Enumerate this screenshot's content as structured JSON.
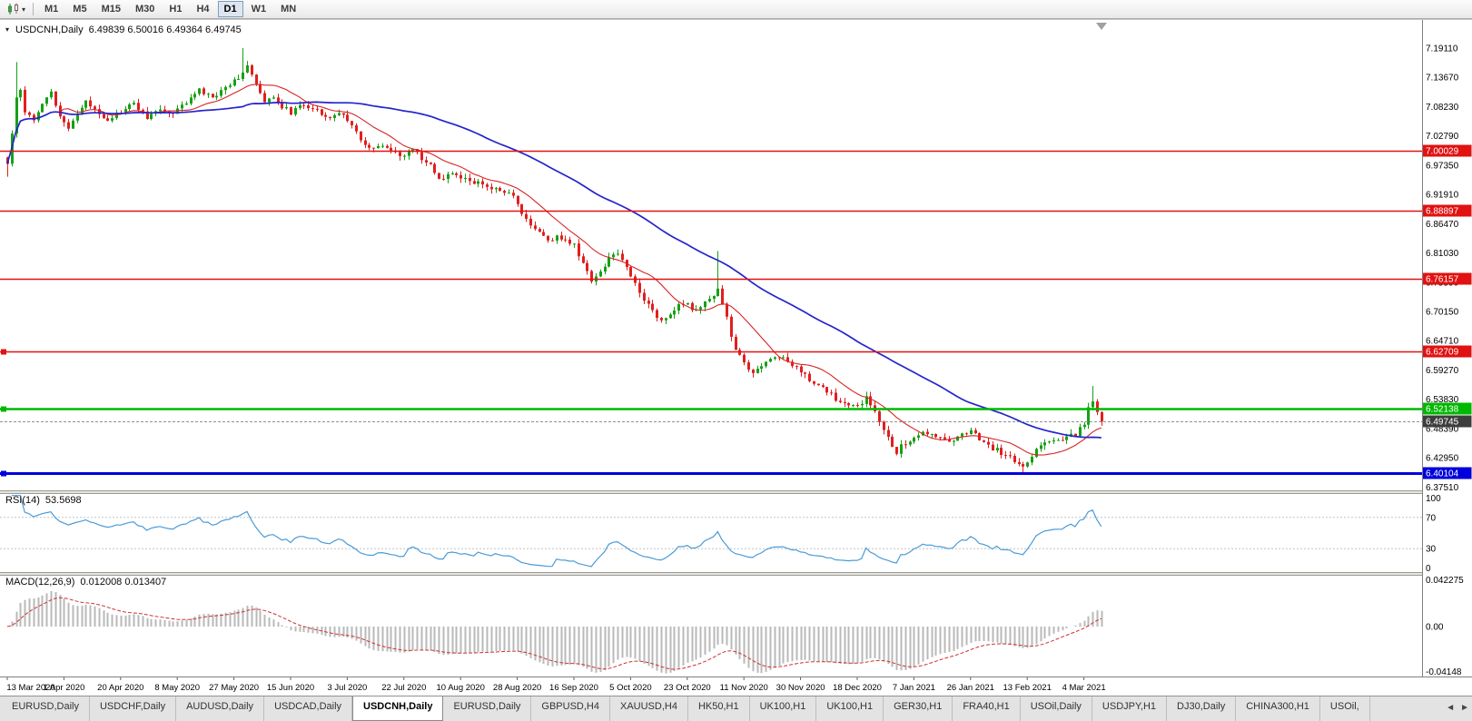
{
  "toolbar": {
    "timeframes": [
      "M1",
      "M5",
      "M15",
      "M30",
      "H1",
      "H4",
      "D1",
      "W1",
      "MN"
    ],
    "active_timeframe": "D1",
    "dropdown_caret": "▾"
  },
  "main_chart": {
    "collapse_arrow": "▾",
    "title": "USDCNH,Daily",
    "ohlc_text": "6.49839 6.50016 6.49364 6.49745"
  },
  "rsi_panel": {
    "label": "RSI(14)",
    "value": "53.5698",
    "axis_labels": [
      "100",
      "70",
      "30",
      "0"
    ]
  },
  "macd_panel": {
    "label": "MACD(12,26,9)",
    "values": "0.012008 0.013407",
    "axis_labels": [
      "0.042275",
      "0.00",
      "-0.04148"
    ]
  },
  "price_axis": {
    "labels": [
      "7.19110",
      "7.13670",
      "7.08230",
      "7.02790",
      "6.97350",
      "6.91910",
      "6.86470",
      "6.81030",
      "6.75590",
      "6.70150",
      "6.64710",
      "6.59270",
      "6.53830",
      "6.48390",
      "6.42950",
      "6.37510"
    ]
  },
  "time_axis": {
    "labels": [
      "13 Mar 2020",
      "1 Apr 2020",
      "20 Apr 2020",
      "8 May 2020",
      "27 May 2020",
      "15 Jun 2020",
      "3 Jul 2020",
      "22 Jul 2020",
      "10 Aug 2020",
      "28 Aug 2020",
      "16 Sep 2020",
      "5 Oct 2020",
      "23 Oct 2020",
      "11 Nov 2020",
      "30 Nov 2020",
      "18 Dec 2020",
      "7 Jan 2021",
      "26 Jan 2021",
      "13 Feb 2021",
      "4 Mar 2021"
    ],
    "days_per_label": 13
  },
  "tabs": {
    "items": [
      "EURUSD,Daily",
      "USDCHF,Daily",
      "AUDUSD,Daily",
      "USDCAD,Daily",
      "USDCNH,Daily",
      "EURUSD,Daily",
      "GBPUSD,H4",
      "XAUUSD,H4",
      "HK50,H1",
      "UK100,H1",
      "UK100,H1",
      "GER30,H1",
      "FRA40,H1",
      "USOil,Daily",
      "USDJPY,H1",
      "DJ30,Daily",
      "CHINA300,H1",
      "USOil,"
    ],
    "active": "USDCNH,Daily",
    "scroll_left_icon": "◄",
    "scroll_right_icon": "►"
  },
  "colors": {
    "up": "#16a016",
    "down": "#e01f1f",
    "ma_fast": "#d82424",
    "ma_slow": "#2424cc",
    "rsi_line": "#4b9bd7",
    "macd_hist": "#b9b9b9",
    "macd_signal": "#cc3333",
    "level_red": "#e01212",
    "level_green": "#00b800",
    "level_blue": "#0000dc",
    "current_badge_bg": "#3d3d3d",
    "badge_text": "#ffffff",
    "axis_text": "#000000"
  },
  "chart_data": {
    "type": "candlestick",
    "symbol": "USDCNH",
    "timeframe": "Daily",
    "ohlc_display": {
      "open": 6.49839,
      "high": 6.50016,
      "low": 6.49364,
      "close": 6.49745
    },
    "current_price": 6.49745,
    "num_candles": 252,
    "y_range_hint": [
      6.369,
      7.243
    ],
    "grid": "off",
    "legend": "none",
    "horizontal_lines": [
      {
        "price": 7.00029,
        "label": "7.00029",
        "color": "#e01212",
        "width": 1.4,
        "handle": false
      },
      {
        "price": 6.88897,
        "label": "6.88897",
        "color": "#e01212",
        "width": 1.4,
        "handle": false
      },
      {
        "price": 6.76157,
        "label": "6.76157",
        "color": "#e01212",
        "width": 1.4,
        "handle": false
      },
      {
        "price": 6.62709,
        "label": "6.62709",
        "color": "#e01212",
        "width": 1.6,
        "handle": true
      },
      {
        "price": 6.52138,
        "label": "6.52138",
        "color": "#00b800",
        "width": 2.6,
        "handle": true
      },
      {
        "price": 6.40104,
        "label": "6.40104",
        "color": "#0000dc",
        "width": 3.0,
        "handle": true
      }
    ],
    "moving_averages": [
      {
        "name": "fast",
        "period": 13,
        "color": "#d82424"
      },
      {
        "name": "slow",
        "period": 55,
        "color": "#2424cc"
      }
    ],
    "price_trend_anchors": [
      [
        0,
        6.975
      ],
      [
        1,
        7.035
      ],
      [
        2,
        7.1
      ],
      [
        3,
        7.115
      ],
      [
        4,
        7.075
      ],
      [
        6,
        7.06
      ],
      [
        8,
        7.09
      ],
      [
        10,
        7.11
      ],
      [
        12,
        7.06
      ],
      [
        14,
        7.045
      ],
      [
        16,
        7.07
      ],
      [
        18,
        7.09
      ],
      [
        20,
        7.078
      ],
      [
        23,
        7.058
      ],
      [
        26,
        7.072
      ],
      [
        29,
        7.088
      ],
      [
        32,
        7.062
      ],
      [
        35,
        7.078
      ],
      [
        38,
        7.068
      ],
      [
        41,
        7.092
      ],
      [
        44,
        7.112
      ],
      [
        47,
        7.098
      ],
      [
        50,
        7.118
      ],
      [
        53,
        7.138
      ],
      [
        55,
        7.158
      ],
      [
        57,
        7.122
      ],
      [
        59,
        7.088
      ],
      [
        61,
        7.102
      ],
      [
        63,
        7.082
      ],
      [
        65,
        7.072
      ],
      [
        68,
        7.086
      ],
      [
        71,
        7.076
      ],
      [
        74,
        7.062
      ],
      [
        77,
        7.07
      ],
      [
        79,
        7.048
      ],
      [
        81,
        7.018
      ],
      [
        83,
        7.002
      ],
      [
        86,
        7.012
      ],
      [
        88,
        6.998
      ],
      [
        91,
        6.99
      ],
      [
        93,
        7.004
      ],
      [
        95,
        6.986
      ],
      [
        97,
        6.972
      ],
      [
        99,
        6.948
      ],
      [
        102,
        6.956
      ],
      [
        104,
        6.95
      ],
      [
        107,
        6.942
      ],
      [
        110,
        6.934
      ],
      [
        113,
        6.926
      ],
      [
        116,
        6.916
      ],
      [
        118,
        6.882
      ],
      [
        120,
        6.862
      ],
      [
        122,
        6.85
      ],
      [
        124,
        6.83
      ],
      [
        126,
        6.842
      ],
      [
        128,
        6.834
      ],
      [
        130,
        6.824
      ],
      [
        132,
        6.79
      ],
      [
        134,
        6.758
      ],
      [
        136,
        6.776
      ],
      [
        138,
        6.8
      ],
      [
        140,
        6.812
      ],
      [
        142,
        6.782
      ],
      [
        144,
        6.754
      ],
      [
        146,
        6.726
      ],
      [
        148,
        6.702
      ],
      [
        150,
        6.684
      ],
      [
        152,
        6.698
      ],
      [
        154,
        6.712
      ],
      [
        156,
        6.714
      ],
      [
        158,
        6.702
      ],
      [
        160,
        6.716
      ],
      [
        162,
        6.732
      ],
      [
        163,
        6.746
      ],
      [
        164,
        6.712
      ],
      [
        165,
        6.69
      ],
      [
        166,
        6.658
      ],
      [
        167,
        6.628
      ],
      [
        169,
        6.606
      ],
      [
        171,
        6.586
      ],
      [
        173,
        6.602
      ],
      [
        175,
        6.614
      ],
      [
        177,
        6.62
      ],
      [
        179,
        6.606
      ],
      [
        182,
        6.592
      ],
      [
        184,
        6.574
      ],
      [
        186,
        6.56
      ],
      [
        188,
        6.554
      ],
      [
        190,
        6.538
      ],
      [
        192,
        6.53
      ],
      [
        195,
        6.524
      ],
      [
        197,
        6.54
      ],
      [
        199,
        6.52
      ],
      [
        201,
        6.48
      ],
      [
        203,
        6.45
      ],
      [
        204,
        6.434
      ],
      [
        205,
        6.454
      ],
      [
        207,
        6.46
      ],
      [
        208,
        6.464
      ],
      [
        210,
        6.48
      ],
      [
        212,
        6.474
      ],
      [
        214,
        6.466
      ],
      [
        216,
        6.46
      ],
      [
        218,
        6.47
      ],
      [
        221,
        6.48
      ],
      [
        223,
        6.466
      ],
      [
        225,
        6.45
      ],
      [
        227,
        6.444
      ],
      [
        229,
        6.434
      ],
      [
        231,
        6.424
      ],
      [
        233,
        6.414
      ],
      [
        235,
        6.434
      ],
      [
        237,
        6.454
      ],
      [
        239,
        6.464
      ],
      [
        241,
        6.46
      ],
      [
        243,
        6.466
      ],
      [
        245,
        6.474
      ],
      [
        247,
        6.494
      ],
      [
        248,
        6.52
      ],
      [
        249,
        6.534
      ],
      [
        250,
        6.51
      ],
      [
        251,
        6.49745
      ]
    ],
    "wick_events": [
      {
        "day": 0,
        "low": 6.952
      },
      {
        "day": 2,
        "high": 7.165
      },
      {
        "day": 54,
        "high": 7.191
      },
      {
        "day": 163,
        "high": 6.814
      },
      {
        "day": 233,
        "low": 6.398
      },
      {
        "day": 249,
        "high": 6.563
      }
    ],
    "indicators": {
      "rsi": {
        "period": 14,
        "last_value": 53.5698,
        "levels": [
          70,
          30
        ],
        "range": [
          0,
          100
        ]
      },
      "macd": {
        "fast": 12,
        "slow": 26,
        "signal": 9,
        "last_values": [
          0.012008,
          0.013407
        ],
        "axis_max": 0.042275,
        "axis_min": -0.04148
      }
    }
  }
}
